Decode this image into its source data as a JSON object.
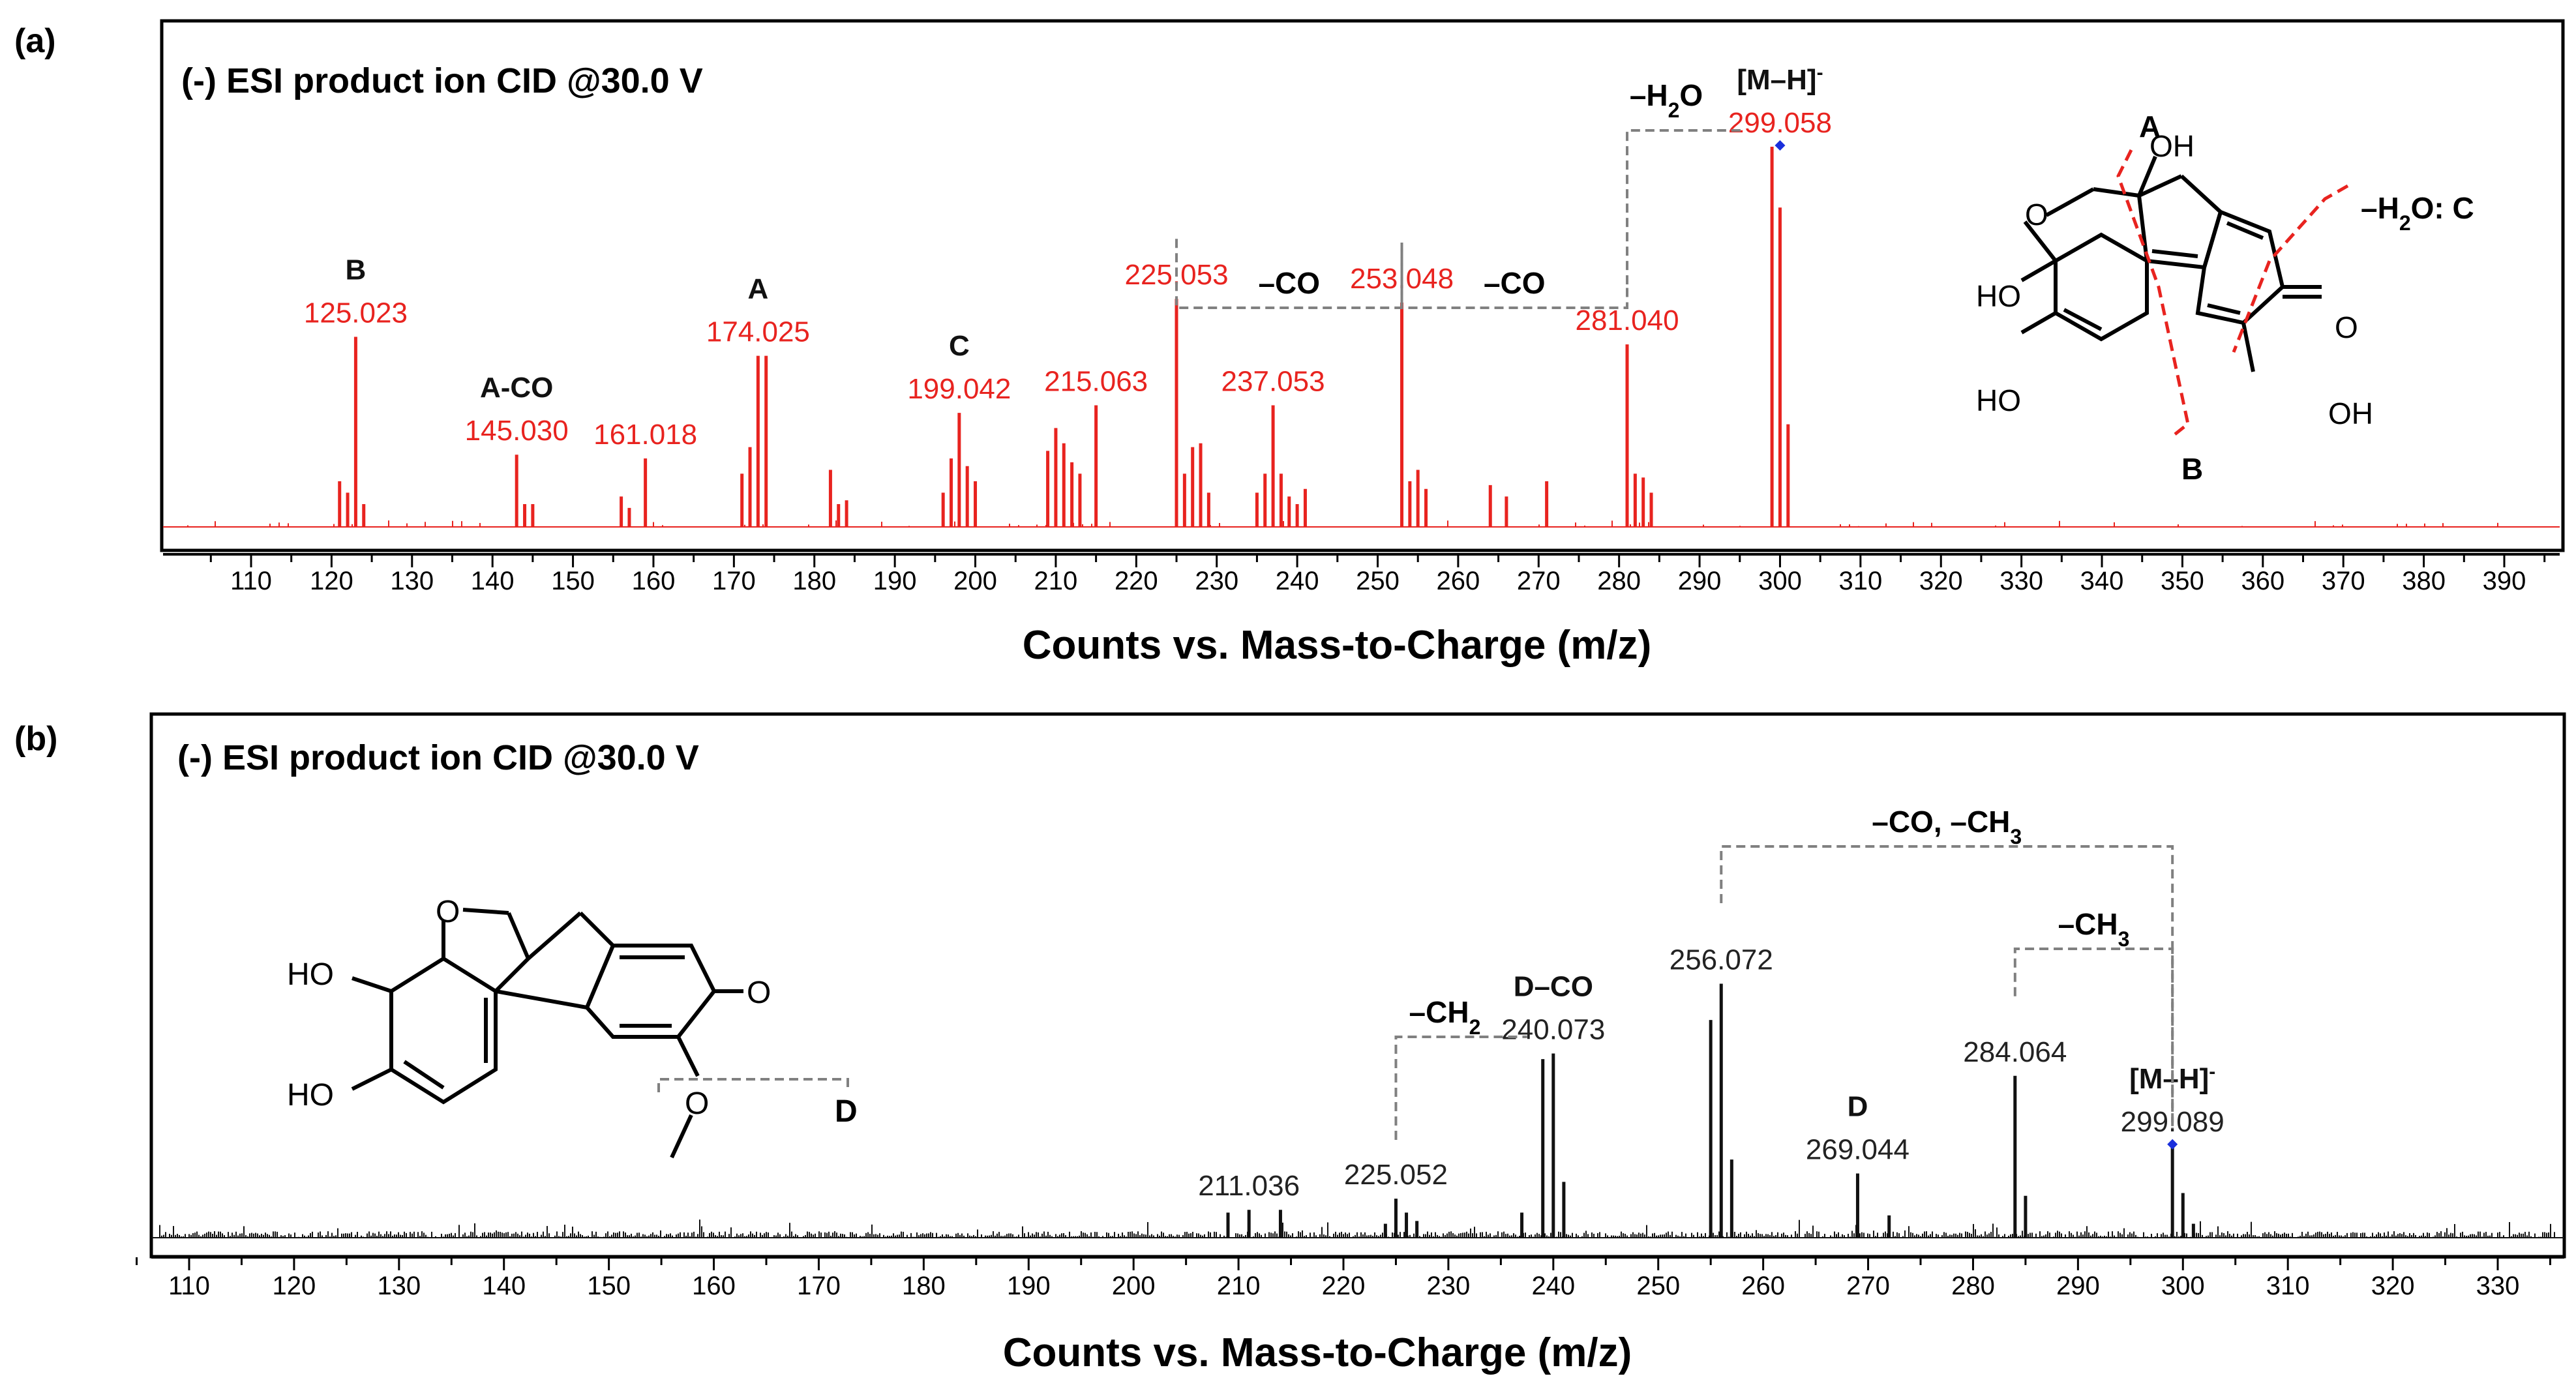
{
  "chart_data": [
    {
      "panel_label": "(a)",
      "type": "bar",
      "title": "(-) ESI product ion CID @30.0 V",
      "xlabel": "Counts vs. Mass-to-Charge (m/z)",
      "ylabel": "",
      "xlim": [
        100,
        400
      ],
      "ylim": [
        0,
        100
      ],
      "x_ticks": [
        110,
        120,
        130,
        140,
        150,
        160,
        170,
        180,
        190,
        200,
        210,
        220,
        230,
        240,
        250,
        260,
        270,
        280,
        290,
        300,
        310,
        320,
        330,
        340,
        350,
        360,
        370,
        380,
        390
      ],
      "x": [
        121,
        122,
        123,
        124,
        143,
        144,
        145,
        156,
        157,
        159,
        171,
        172,
        173,
        174,
        182,
        183,
        184,
        196,
        197,
        198,
        199,
        200,
        209,
        210,
        211,
        212,
        213,
        215,
        225,
        226,
        227,
        228,
        229,
        235,
        236,
        237,
        238,
        239,
        240,
        241,
        253,
        254,
        255,
        256,
        264,
        266,
        271,
        281,
        282,
        283,
        284,
        299,
        300,
        301
      ],
      "values": [
        12,
        9,
        50,
        6,
        19,
        6,
        6,
        8,
        5,
        18,
        14,
        21,
        45,
        45,
        15,
        6,
        7,
        9,
        18,
        30,
        16,
        12,
        20,
        26,
        22,
        17,
        14,
        32,
        60,
        14,
        21,
        22,
        9,
        9,
        14,
        32,
        14,
        8,
        6,
        10,
        59,
        12,
        15,
        10,
        11,
        8,
        12,
        48,
        14,
        13,
        9,
        100,
        84,
        27
      ],
      "peak_labels": [
        {
          "mz": "125.023",
          "x": 123,
          "ion": "B"
        },
        {
          "mz": "145.030",
          "x": 143,
          "ion": "A-CO"
        },
        {
          "mz": "161.018",
          "x": 159,
          "ion": ""
        },
        {
          "mz": "174.025",
          "x": 173,
          "ion": "A"
        },
        {
          "mz": "199.042",
          "x": 198,
          "ion": "C"
        },
        {
          "mz": "215.063",
          "x": 215,
          "ion": ""
        },
        {
          "mz": "225.053",
          "x": 225,
          "ion": ""
        },
        {
          "mz": "237.053",
          "x": 237,
          "ion": ""
        },
        {
          "mz": "253.048",
          "x": 253,
          "ion": ""
        },
        {
          "mz": "281.040",
          "x": 281,
          "ion": ""
        },
        {
          "mz": "299.058",
          "x": 300,
          "ion": "[M–H]"
        }
      ],
      "losses": [
        {
          "label": "–CO",
          "from": 225,
          "to": 253
        },
        {
          "label": "–CO",
          "from": 253,
          "to": 281
        },
        {
          "label": "–H",
          "sub": "2",
          "tail": "O",
          "from": 281,
          "to": 300
        }
      ],
      "structure_labels": {
        "oh_top": "OH",
        "ho1": "HO",
        "ho2": "HO",
        "oh_bottom": "OH",
        "ring_o": "O",
        "keto_o": "O",
        "cut_a": "A",
        "cut_b": "B",
        "cut_c": "–H",
        "cut_c_sub": "2",
        "cut_c_tail": "O: C"
      }
    },
    {
      "panel_label": "(b)",
      "type": "bar",
      "title": "(-) ESI product ion CID @30.0 V",
      "xlabel": "Counts vs. Mass-to-Charge (m/z)",
      "ylabel": "",
      "xlim": [
        105,
        337
      ],
      "ylim": [
        0,
        100
      ],
      "x_ticks": [
        110,
        120,
        130,
        140,
        150,
        160,
        170,
        180,
        190,
        200,
        210,
        220,
        230,
        240,
        250,
        260,
        270,
        280,
        290,
        300,
        310,
        320,
        330
      ],
      "x": [
        209,
        211,
        214,
        224,
        225,
        226,
        227,
        237,
        239,
        240,
        241,
        255,
        256,
        257,
        269,
        272,
        284,
        285,
        299,
        300,
        301
      ],
      "values": [
        9,
        10,
        10,
        5,
        14,
        9,
        6,
        9,
        64,
        66,
        20,
        78,
        91,
        28,
        23,
        8,
        58,
        15,
        33,
        16,
        5
      ],
      "peak_labels": [
        {
          "mz": "211.036",
          "x": 211,
          "ion": ""
        },
        {
          "mz": "225.052",
          "x": 225,
          "ion": ""
        },
        {
          "mz": "240.073",
          "x": 240,
          "ion": "D–CO"
        },
        {
          "mz": "256.072",
          "x": 256,
          "ion": ""
        },
        {
          "mz": "269.044",
          "x": 269,
          "ion": "D"
        },
        {
          "mz": "284.064",
          "x": 284,
          "ion": ""
        },
        {
          "mz": "299.089",
          "x": 299,
          "ion": "[M–H]"
        }
      ],
      "losses": [
        {
          "label": "–CH",
          "sub": "2",
          "tail": "",
          "from": 225,
          "to": 240
        },
        {
          "label": "–CH",
          "sub": "3",
          "tail": "",
          "from": 284,
          "to": 299
        },
        {
          "label": "–CO, –CH",
          "sub": "3",
          "tail": "",
          "from": 256,
          "to": 299
        }
      ],
      "structure_labels": {
        "ho1": "HO",
        "ho2": "HO",
        "ring_o": "O",
        "keto_o": "O",
        "methoxy_o": "O",
        "cut_d": "D"
      }
    }
  ]
}
